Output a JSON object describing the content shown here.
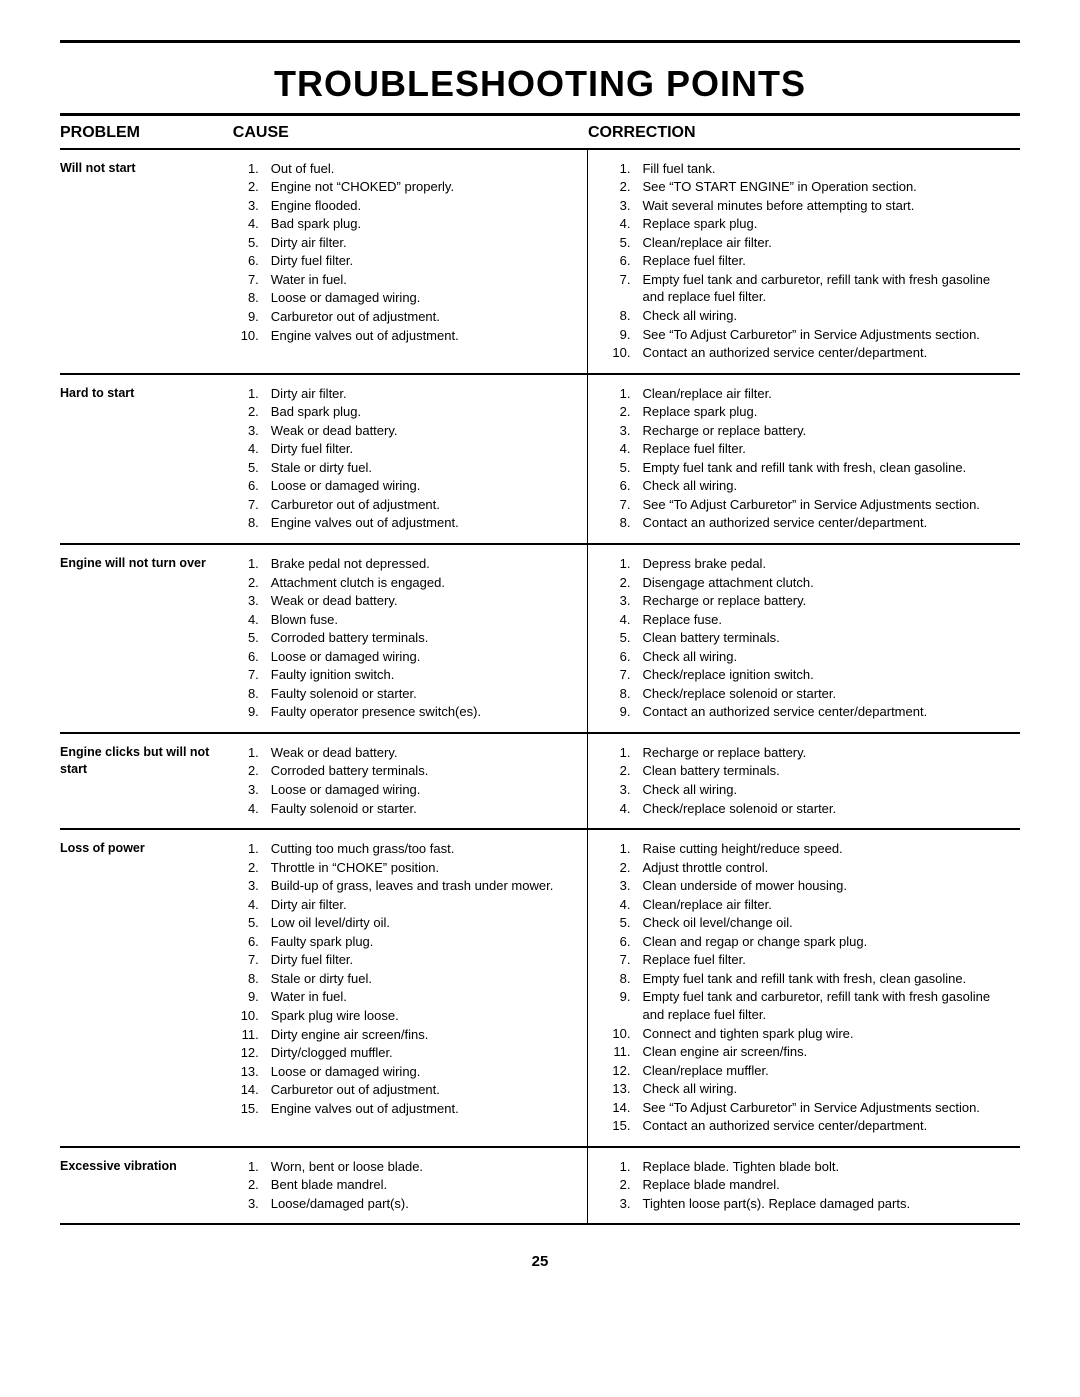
{
  "title": "TROUBLESHOOTING POINTS",
  "page_number": "25",
  "headers": {
    "problem": "PROBLEM",
    "cause": "CAUSE",
    "correction": "CORRECTION"
  },
  "rows": [
    {
      "problem": "Will not start",
      "causes": [
        "Out of fuel.",
        "Engine not “CHOKED” properly.",
        "Engine flooded.",
        "Bad spark plug.",
        "Dirty air filter.",
        "Dirty fuel filter.",
        "Water in fuel.",
        "Loose or damaged wiring.",
        "Carburetor out of adjustment.",
        "Engine valves out of adjustment."
      ],
      "corrections": [
        "Fill fuel tank.",
        "See “TO START ENGINE” in Operation section.",
        "Wait several minutes before attempting to start.",
        "Replace spark plug.",
        "Clean/replace air filter.",
        "Replace fuel filter.",
        "Empty fuel tank and carburetor, refill tank with fresh gasoline and replace fuel filter.",
        "Check all wiring.",
        "See “To Adjust Carburetor” in Service Adjustments section.",
        "Contact an authorized service center/department."
      ]
    },
    {
      "problem": "Hard to start",
      "causes": [
        "Dirty air filter.",
        "Bad spark plug.",
        "Weak or dead battery.",
        "Dirty fuel filter.",
        "Stale or dirty fuel.",
        "Loose or damaged wiring.",
        "Carburetor out of adjustment.",
        "Engine valves out of adjustment."
      ],
      "corrections": [
        "Clean/replace air filter.",
        "Replace spark plug.",
        "Recharge or replace battery.",
        "Replace fuel filter.",
        "Empty fuel tank and refill tank with fresh, clean gasoline.",
        "Check all wiring.",
        "See “To Adjust Carburetor” in Service Adjustments section.",
        "Contact an authorized service center/department."
      ]
    },
    {
      "problem": "Engine will not turn over",
      "causes": [
        "Brake pedal not depressed.",
        "Attachment clutch is engaged.",
        "Weak or dead battery.",
        "Blown fuse.",
        "Corroded battery terminals.",
        "Loose or damaged wiring.",
        "Faulty ignition switch.",
        "Faulty solenoid or starter.",
        "Faulty operator presence switch(es)."
      ],
      "corrections": [
        "Depress brake pedal.",
        "Disengage attachment clutch.",
        "Recharge or replace battery.",
        "Replace fuse.",
        "Clean battery terminals.",
        "Check all wiring.",
        "Check/replace ignition switch.",
        "Check/replace solenoid or starter.",
        "Contact an authorized service center/department."
      ]
    },
    {
      "problem": "Engine clicks but will not start",
      "causes": [
        "Weak or dead battery.",
        "Corroded battery terminals.",
        "Loose or damaged wiring.",
        "Faulty solenoid or starter."
      ],
      "corrections": [
        "Recharge or replace battery.",
        "Clean battery terminals.",
        "Check all wiring.",
        "Check/replace solenoid or starter."
      ]
    },
    {
      "problem": "Loss of power",
      "causes": [
        "Cutting too much grass/too fast.",
        "Throttle in “CHOKE” position.",
        "Build-up of grass, leaves and trash under mower.",
        "Dirty air filter.",
        "Low oil level/dirty oil.",
        "Faulty spark plug.",
        "Dirty fuel filter.",
        "Stale or dirty fuel.",
        "Water in fuel.",
        "Spark plug wire loose.",
        "Dirty engine air screen/fins.",
        "Dirty/clogged muffler.",
        "Loose or damaged wiring.",
        "Carburetor out of adjustment.",
        "Engine valves out of adjustment."
      ],
      "corrections": [
        "Raise cutting height/reduce speed.",
        "Adjust throttle control.",
        "Clean underside of mower housing.",
        "Clean/replace air filter.",
        "Check oil level/change oil.",
        "Clean and regap or change spark plug.",
        "Replace fuel filter.",
        "Empty fuel tank and refill tank with fresh, clean gasoline.",
        "Empty fuel tank and carburetor, refill tank with fresh gasoline and replace fuel filter.",
        "Connect and tighten spark plug wire.",
        "Clean engine air screen/fins.",
        "Clean/replace muffler.",
        "Check all wiring.",
        "See “To Adjust Carburetor” in Service Adjustments section.",
        "Contact an authorized service center/department."
      ]
    },
    {
      "problem": "Excessive vibration",
      "causes": [
        "Worn, bent or loose blade.",
        "Bent blade mandrel.",
        "Loose/damaged part(s)."
      ],
      "corrections": [
        "Replace blade.  Tighten blade bolt.",
        "Replace blade mandrel.",
        "Tighten loose part(s).  Replace damaged parts."
      ]
    }
  ]
}
